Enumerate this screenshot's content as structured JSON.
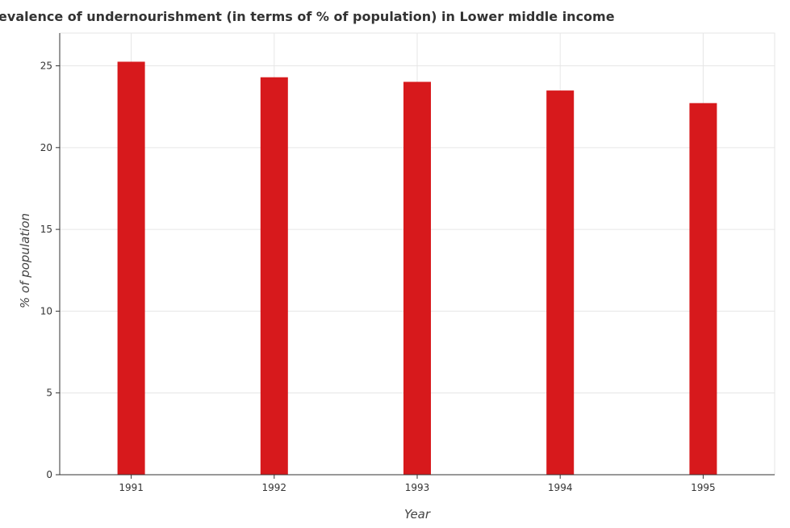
{
  "chart_data": {
    "type": "bar",
    "title": "Prevalence of undernourishment (in terms of % of population) in Lower middle income",
    "xlabel": "Year",
    "ylabel": "% of population",
    "categories": [
      "1991",
      "1992",
      "1993",
      "1994",
      "1995"
    ],
    "values": [
      25.25,
      24.3,
      24.02,
      23.49,
      22.72
    ],
    "ylim": [
      0,
      27
    ],
    "yticks": [
      0,
      5,
      10,
      15,
      20,
      25
    ],
    "grid": true,
    "bar_color": "#d7191c"
  }
}
